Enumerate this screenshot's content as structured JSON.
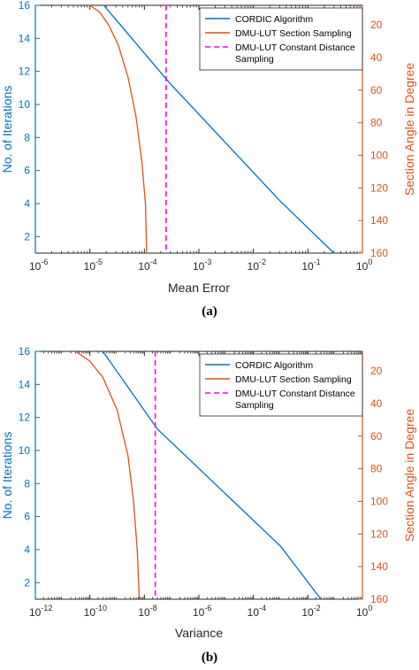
{
  "chart_data": [
    {
      "type": "line",
      "caption": "(a)",
      "xlabel": "Mean Error",
      "ylabel_left": "No. of Iterations",
      "ylabel_right": "Section Angle in Degree",
      "x_scale": "log",
      "xlim": [
        1e-06,
        1
      ],
      "x_tick_exponents": [
        -6,
        -5,
        -4,
        -3,
        -2,
        -1,
        0
      ],
      "ylim_left": [
        1,
        16
      ],
      "y_ticks_left": [
        2,
        4,
        6,
        8,
        10,
        12,
        14,
        16
      ],
      "ylim_right": [
        160,
        8
      ],
      "y_ticks_right": [
        20,
        40,
        60,
        80,
        100,
        120,
        140,
        160
      ],
      "legend_placement": "top-right",
      "series": [
        {
          "name": "CORDIC Algorithm",
          "color": "#0072BD",
          "axis": "left",
          "style": "solid",
          "points": [
            [
              1.8e-05,
              16
            ],
            [
              0.00029,
              11.3
            ],
            [
              0.03,
              4.2
            ],
            [
              0.3,
              1
            ]
          ]
        },
        {
          "name": "DMU-LUT Section Sampling",
          "color": "#D95319",
          "axis": "right",
          "style": "solid",
          "points": [
            [
              1e-05,
              8
            ],
            [
              1.5e-05,
              12
            ],
            [
              2.2e-05,
              20
            ],
            [
              3.3e-05,
              32
            ],
            [
              5e-05,
              52
            ],
            [
              7e-05,
              76
            ],
            [
              9e-05,
              104
            ],
            [
              0.000105,
              130
            ],
            [
              0.00011,
              160
            ]
          ]
        },
        {
          "name": "DMU-LUT Constant Distance Sampling",
          "color": "#FF00FF",
          "axis": "left",
          "style": "dashed",
          "x_constant": 0.00025
        }
      ]
    },
    {
      "type": "line",
      "caption": "(b)",
      "xlabel": "Variance",
      "ylabel_left": "No. of Iterations",
      "ylabel_right": "Section Angle in Degree",
      "x_scale": "log",
      "xlim": [
        1e-12,
        1
      ],
      "x_tick_exponents": [
        -12,
        -10,
        -8,
        -6,
        -4,
        -2,
        0
      ],
      "ylim_left": [
        1,
        16
      ],
      "y_ticks_left": [
        2,
        4,
        6,
        8,
        10,
        12,
        14,
        16
      ],
      "ylim_right": [
        160,
        8
      ],
      "y_ticks_right": [
        20,
        40,
        60,
        80,
        100,
        120,
        140,
        160
      ],
      "legend_placement": "top-right",
      "series": [
        {
          "name": "CORDIC Algorithm",
          "color": "#0072BD",
          "axis": "left",
          "style": "solid",
          "points": [
            [
              3e-10,
              16
            ],
            [
              3e-08,
              11.3
            ],
            [
              0.001,
              4.2
            ],
            [
              0.03,
              1
            ]
          ]
        },
        {
          "name": "DMU-LUT Section Sampling",
          "color": "#D95319",
          "axis": "right",
          "style": "solid",
          "points": [
            [
              3e-11,
              8
            ],
            [
              1e-10,
              14
            ],
            [
              3e-10,
              24
            ],
            [
              1e-09,
              44
            ],
            [
              2.5e-09,
              72
            ],
            [
              4e-09,
              100
            ],
            [
              5.5e-09,
              130
            ],
            [
              6.5e-09,
              160
            ]
          ]
        },
        {
          "name": "DMU-LUT Constant Distance Sampling",
          "color": "#FF00FF",
          "axis": "left",
          "style": "dashed",
          "x_constant": 2.5e-08
        }
      ]
    }
  ]
}
